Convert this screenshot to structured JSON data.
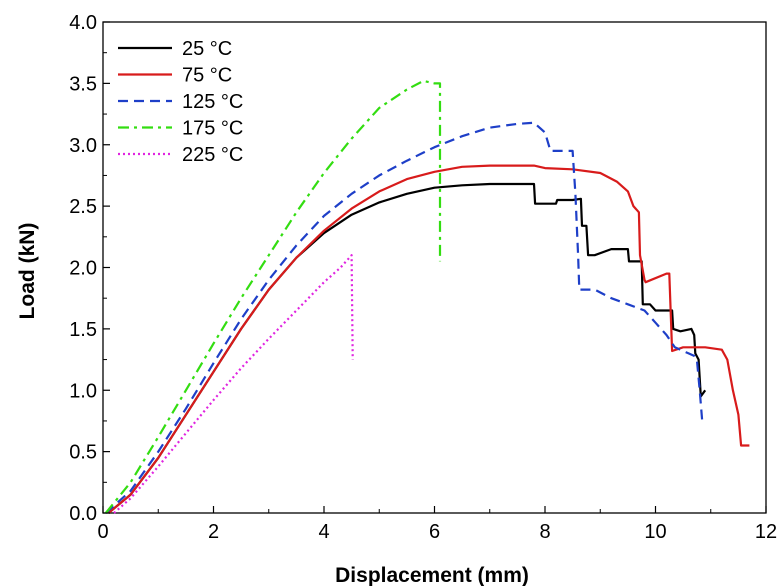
{
  "chart_data": {
    "type": "line",
    "xlabel": "Displacement (mm)",
    "ylabel": "Load (kN)",
    "xlim": [
      0,
      12
    ],
    "ylim": [
      0,
      4.0
    ],
    "xticks": [
      0,
      2,
      4,
      6,
      8,
      10,
      12
    ],
    "yticks": [
      0.0,
      0.5,
      1.0,
      1.5,
      2.0,
      2.5,
      3.0,
      3.5,
      4.0
    ],
    "xtick_labels": [
      "0",
      "2",
      "4",
      "6",
      "8",
      "10",
      "12"
    ],
    "ytick_labels": [
      "0.0",
      "0.5",
      "1.0",
      "1.5",
      "2.0",
      "2.5",
      "3.0",
      "3.5",
      "4.0"
    ],
    "grid": false,
    "legend_position": "top-left",
    "series": [
      {
        "name": "25 °C",
        "color": "#000000",
        "dash": "solid",
        "x": [
          0.1,
          0.5,
          1.0,
          1.5,
          2.0,
          2.5,
          3.0,
          3.5,
          4.0,
          4.5,
          5.0,
          5.5,
          6.0,
          6.5,
          7.0,
          7.5,
          7.8,
          7.82,
          8.2,
          8.22,
          8.5,
          8.65,
          8.67,
          8.75,
          8.78,
          8.9,
          9.2,
          9.5,
          9.52,
          9.65,
          9.75,
          9.77,
          9.9,
          10.0,
          10.3,
          10.32,
          10.45,
          10.65,
          10.7,
          10.72,
          10.78,
          10.82,
          10.9
        ],
        "y": [
          0.0,
          0.15,
          0.45,
          0.8,
          1.15,
          1.5,
          1.82,
          2.08,
          2.28,
          2.43,
          2.53,
          2.6,
          2.65,
          2.67,
          2.68,
          2.68,
          2.68,
          2.52,
          2.52,
          2.55,
          2.55,
          2.56,
          2.34,
          2.34,
          2.1,
          2.1,
          2.15,
          2.15,
          2.05,
          2.05,
          2.05,
          1.7,
          1.7,
          1.65,
          1.65,
          1.5,
          1.48,
          1.5,
          1.45,
          1.3,
          1.25,
          0.95,
          1.0
        ]
      },
      {
        "name": "75 °C",
        "color": "#d81b1b",
        "dash": "solid",
        "x": [
          0.1,
          0.5,
          1.0,
          1.5,
          2.0,
          2.5,
          3.0,
          3.5,
          4.0,
          4.5,
          5.0,
          5.5,
          6.0,
          6.5,
          7.0,
          7.5,
          7.8,
          8.0,
          8.5,
          9.0,
          9.3,
          9.5,
          9.6,
          9.7,
          9.72,
          9.8,
          9.82,
          10.2,
          10.25,
          10.3,
          10.5,
          10.9,
          11.2,
          11.3,
          11.4,
          11.5,
          11.55,
          11.7
        ],
        "y": [
          0.0,
          0.15,
          0.45,
          0.8,
          1.15,
          1.5,
          1.82,
          2.08,
          2.3,
          2.48,
          2.62,
          2.72,
          2.78,
          2.82,
          2.83,
          2.83,
          2.83,
          2.81,
          2.8,
          2.77,
          2.7,
          2.62,
          2.5,
          2.45,
          2.1,
          1.9,
          1.88,
          1.95,
          1.95,
          1.32,
          1.35,
          1.35,
          1.33,
          1.25,
          1.0,
          0.8,
          0.55,
          0.55
        ]
      },
      {
        "name": "125 °C",
        "color": "#1e3fc8",
        "dash": "dashed",
        "x": [
          0.05,
          0.5,
          1.0,
          1.5,
          2.0,
          2.5,
          3.0,
          3.5,
          4.0,
          4.5,
          5.0,
          5.5,
          6.0,
          6.5,
          7.0,
          7.5,
          7.8,
          8.0,
          8.1,
          8.5,
          8.55,
          8.6,
          8.62,
          8.7,
          8.9,
          9.2,
          9.5,
          9.8,
          10.0,
          10.2,
          10.35,
          10.6,
          10.7,
          10.75,
          10.8,
          10.85
        ],
        "y": [
          0.0,
          0.18,
          0.5,
          0.85,
          1.22,
          1.58,
          1.9,
          2.18,
          2.42,
          2.6,
          2.75,
          2.87,
          2.98,
          3.07,
          3.14,
          3.17,
          3.18,
          3.1,
          2.95,
          2.95,
          2.6,
          2.1,
          1.82,
          1.82,
          1.82,
          1.75,
          1.7,
          1.65,
          1.55,
          1.45,
          1.35,
          1.3,
          1.28,
          1.25,
          1.0,
          0.72
        ]
      },
      {
        "name": "175 °C",
        "color": "#33dd11",
        "dash": "dashdot",
        "x": [
          0.05,
          0.5,
          1.0,
          1.5,
          2.0,
          2.5,
          3.0,
          3.5,
          4.0,
          4.5,
          5.0,
          5.5,
          5.8,
          6.0,
          6.1,
          6.1
        ],
        "y": [
          0.0,
          0.25,
          0.62,
          1.0,
          1.38,
          1.75,
          2.1,
          2.45,
          2.77,
          3.05,
          3.3,
          3.45,
          3.52,
          3.5,
          3.5,
          2.05
        ]
      },
      {
        "name": "225 °C",
        "color": "#e024e0",
        "dash": "dotted",
        "x": [
          0.2,
          0.5,
          1.0,
          1.5,
          2.0,
          2.5,
          3.0,
          3.5,
          4.0,
          4.3,
          4.5,
          4.52
        ],
        "y": [
          0.0,
          0.12,
          0.38,
          0.65,
          0.92,
          1.18,
          1.42,
          1.65,
          1.88,
          2.0,
          2.1,
          1.25
        ]
      }
    ]
  }
}
